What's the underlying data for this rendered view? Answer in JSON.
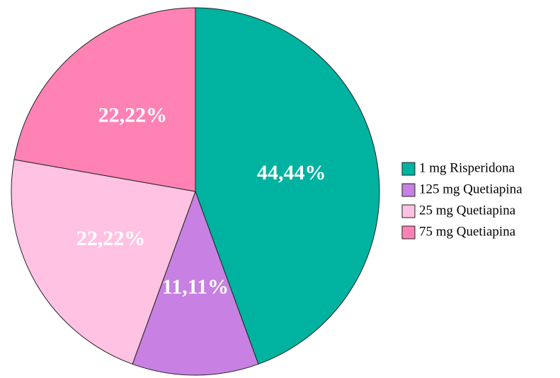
{
  "chart_data": {
    "type": "pie",
    "categories": [
      "1 mg Risperidona",
      "125 mg Quetiapina",
      "25 mg Quetiapina",
      "75 mg Quetiapina"
    ],
    "values": [
      44.44,
      11.11,
      22.22,
      22.22
    ],
    "value_labels": [
      "44,44%",
      "11,11%",
      "22,22%",
      "22,22%"
    ],
    "colors": [
      "#00b2a0",
      "#c880e2",
      "#ffc2e2",
      "#ff82b4"
    ],
    "legend": "right"
  }
}
